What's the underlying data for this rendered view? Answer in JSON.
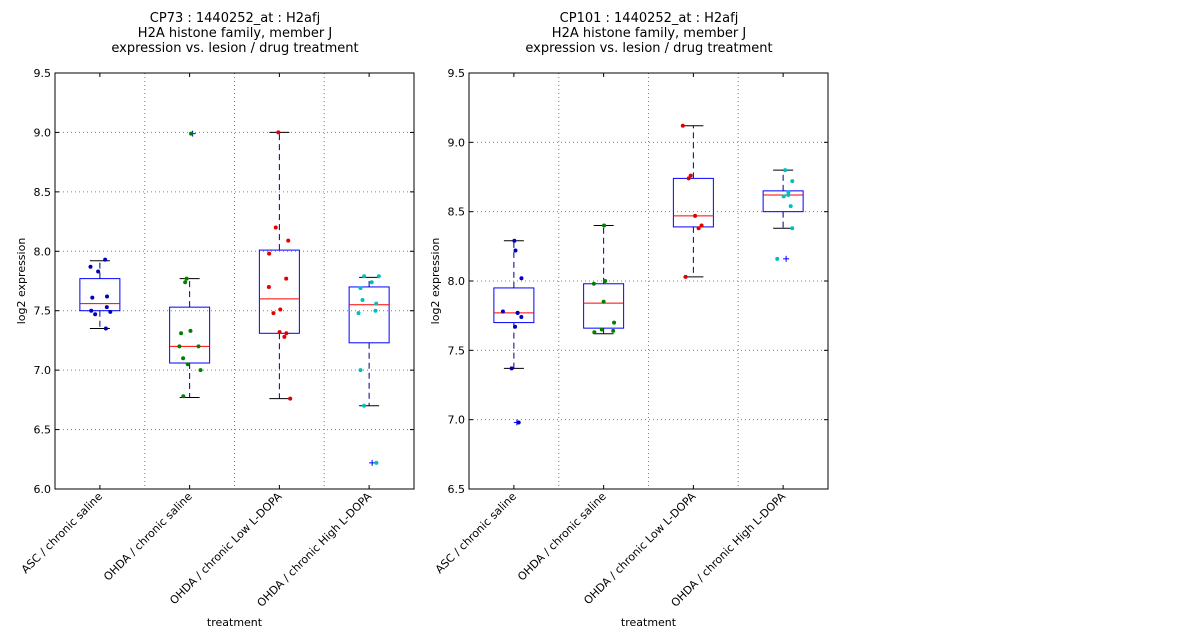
{
  "colors": {
    "box": "#0000ff",
    "median": "#ff0000",
    "whisker": "#000080",
    "cap": "#000000",
    "grid": "#808080",
    "groups": [
      "#0000c0",
      "#007f00",
      "#e00000",
      "#00bfbf"
    ]
  },
  "chart_data": [
    {
      "type": "box",
      "title_lines": [
        "CP73 : 1440252_at : H2afj",
        "H2A histone family, member J",
        "expression vs. lesion / drug treatment"
      ],
      "xlabel": "treatment",
      "ylabel": "log2 expression",
      "ylim": [
        6.0,
        9.5
      ],
      "yticks": [
        "6.0",
        "6.5",
        "7.0",
        "7.5",
        "8.0",
        "8.5",
        "9.0",
        "9.5"
      ],
      "grid": true,
      "categories": [
        "ASC / chronic saline",
        "OHDA / chronic saline",
        "OHDA / chronic Low L-DOPA",
        "OHDA / chronic High L-DOPA"
      ],
      "boxes": [
        {
          "q1": 7.5,
          "median": 7.56,
          "q3": 7.77,
          "whisker_low": 7.35,
          "whisker_high": 7.92,
          "outliers": []
        },
        {
          "q1": 7.06,
          "median": 7.2,
          "q3": 7.53,
          "whisker_low": 6.77,
          "whisker_high": 7.77,
          "outliers": [
            8.99
          ]
        },
        {
          "q1": 7.31,
          "median": 7.6,
          "q3": 8.01,
          "whisker_low": 6.76,
          "whisker_high": 9.0,
          "outliers": []
        },
        {
          "q1": 7.23,
          "median": 7.55,
          "q3": 7.7,
          "whisker_low": 6.7,
          "whisker_high": 7.78,
          "outliers": [
            6.22
          ]
        }
      ],
      "points": [
        [
          7.93,
          7.87,
          7.83,
          7.62,
          7.61,
          7.53,
          7.5,
          7.49,
          7.47,
          7.35
        ],
        [
          8.99,
          7.77,
          7.74,
          7.33,
          7.31,
          7.2,
          7.2,
          7.1,
          7.05,
          7.0,
          6.78
        ],
        [
          9.0,
          8.2,
          8.09,
          7.98,
          7.77,
          7.7,
          7.51,
          7.48,
          7.32,
          7.31,
          7.28,
          6.76
        ],
        [
          7.79,
          7.79,
          7.74,
          7.69,
          7.59,
          7.56,
          7.5,
          7.48,
          7.0,
          6.7,
          6.22
        ]
      ]
    },
    {
      "type": "box",
      "title_lines": [
        "CP101 : 1440252_at : H2afj",
        "H2A histone family, member J",
        "expression vs. lesion / drug treatment"
      ],
      "xlabel": "treatment",
      "ylabel": "log2 expression",
      "ylim": [
        6.5,
        9.5
      ],
      "yticks": [
        "6.5",
        "7.0",
        "7.5",
        "8.0",
        "8.5",
        "9.0",
        "9.5"
      ],
      "grid": true,
      "categories": [
        "ASC / chronic saline",
        "OHDA / chronic saline",
        "OHDA / chronic Low L-DOPA",
        "OHDA / chronic High L-DOPA"
      ],
      "boxes": [
        {
          "q1": 7.7,
          "median": 7.77,
          "q3": 7.95,
          "whisker_low": 7.37,
          "whisker_high": 8.29,
          "outliers": [
            6.98
          ]
        },
        {
          "q1": 7.66,
          "median": 7.84,
          "q3": 7.98,
          "whisker_low": 7.62,
          "whisker_high": 8.4,
          "outliers": []
        },
        {
          "q1": 8.39,
          "median": 8.47,
          "q3": 8.74,
          "whisker_low": 8.03,
          "whisker_high": 9.12,
          "outliers": []
        },
        {
          "q1": 8.5,
          "median": 8.62,
          "q3": 8.65,
          "whisker_low": 8.38,
          "whisker_high": 8.8,
          "outliers": [
            8.16
          ]
        }
      ],
      "points": [
        [
          8.29,
          8.22,
          8.02,
          7.78,
          7.77,
          7.77,
          7.74,
          7.67,
          7.37,
          6.98
        ],
        [
          8.4,
          8.0,
          7.98,
          7.85,
          7.7,
          7.65,
          7.64,
          7.63
        ],
        [
          9.12,
          8.76,
          8.74,
          8.47,
          8.4,
          8.38,
          8.03
        ],
        [
          8.8,
          8.72,
          8.64,
          8.62,
          8.61,
          8.54,
          8.38,
          8.16
        ]
      ]
    }
  ]
}
